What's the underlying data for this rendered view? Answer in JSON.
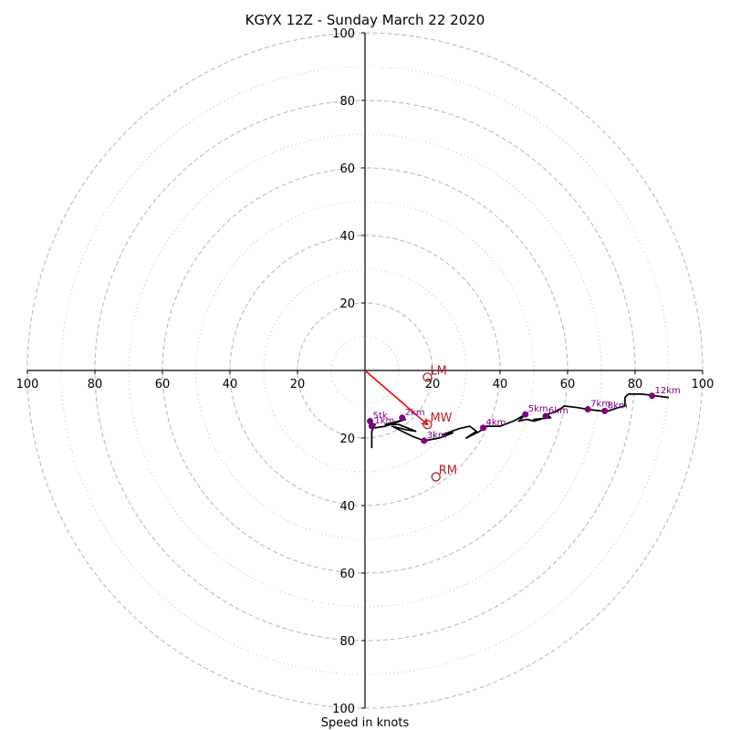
{
  "chart_data": {
    "type": "line",
    "title": "KGYX 12Z - Sunday March 22 2020",
    "xlabel": "Speed in knots",
    "xlim": [
      -100,
      100
    ],
    "ylim": [
      -100,
      100
    ],
    "rings_major": [
      20,
      40,
      60,
      80,
      100
    ],
    "rings_minor": [
      10,
      30,
      50,
      70,
      90
    ],
    "x_ticks": [
      "100",
      "80",
      "60",
      "40",
      "20",
      "20",
      "40",
      "60",
      "80",
      "100"
    ],
    "x_tick_values": [
      -100,
      -80,
      -60,
      -40,
      -20,
      20,
      40,
      60,
      80,
      100
    ],
    "y_ticks": [
      "100",
      "80",
      "60",
      "40",
      "20",
      "20",
      "40",
      "60",
      "80",
      "100"
    ],
    "y_tick_values": [
      100,
      80,
      60,
      40,
      20,
      -20,
      -40,
      -60,
      -80,
      -100
    ],
    "hodograph": {
      "color": "#000000",
      "points": [
        [
          2,
          -23
        ],
        [
          2,
          -18
        ],
        [
          3,
          -16
        ],
        [
          1.5,
          -15.5
        ],
        [
          3,
          -17
        ],
        [
          6,
          -16.5
        ],
        [
          12,
          -14.5
        ],
        [
          6,
          -16
        ],
        [
          10,
          -16
        ],
        [
          15,
          -18
        ],
        [
          12,
          -17.5
        ],
        [
          8,
          -16.5
        ],
        [
          14,
          -19.5
        ],
        [
          17.5,
          -20.8
        ],
        [
          22,
          -20
        ],
        [
          26,
          -18.5
        ],
        [
          23,
          -19
        ],
        [
          28,
          -17.2
        ],
        [
          31,
          -16.5
        ],
        [
          33,
          -18
        ],
        [
          30,
          -20
        ],
        [
          34,
          -18
        ],
        [
          36,
          -16.5
        ],
        [
          40,
          -16.5
        ],
        [
          44,
          -15
        ],
        [
          47.5,
          -13
        ],
        [
          45.5,
          -15
        ],
        [
          48,
          -14.5
        ],
        [
          50,
          -15
        ],
        [
          52,
          -14.5
        ],
        [
          50,
          -14.5
        ],
        [
          55,
          -14
        ],
        [
          54,
          -13
        ],
        [
          57,
          -12
        ],
        [
          59,
          -10.5
        ],
        [
          63,
          -11
        ],
        [
          66,
          -11.5
        ],
        [
          70,
          -12
        ],
        [
          72,
          -12
        ],
        [
          75,
          -11
        ],
        [
          77,
          -10.5
        ],
        [
          77,
          -8
        ],
        [
          78,
          -7
        ],
        [
          82,
          -7
        ],
        [
          86,
          -7.5
        ],
        [
          90,
          -8
        ]
      ]
    },
    "height_markers": {
      "color": "#800080",
      "points": [
        {
          "label": "5tk",
          "x": 1.5,
          "y": -15
        },
        {
          "label": "1km",
          "x": 2,
          "y": -16.5
        },
        {
          "label": "2km",
          "x": 11,
          "y": -14
        },
        {
          "label": "3km",
          "x": 17.5,
          "y": -20.8
        },
        {
          "label": "4km",
          "x": 35,
          "y": -17
        },
        {
          "label": "5km",
          "x": 47.5,
          "y": -13
        },
        {
          "label": "6km",
          "x": 53.5,
          "y": -13.5
        },
        {
          "label": "7km",
          "x": 66,
          "y": -11.5
        },
        {
          "label": "8km",
          "x": 71,
          "y": -12
        },
        {
          "label": "12km",
          "x": 85,
          "y": -7.5
        }
      ]
    },
    "storm_motion": {
      "color": "#b22222",
      "points": [
        {
          "label": "LM",
          "x": 18.5,
          "y": -2
        },
        {
          "label": "MW",
          "x": 18.5,
          "y": -16
        },
        {
          "label": "RM",
          "x": 21,
          "y": -31.5
        }
      ]
    },
    "mean_wind_vector": {
      "color": "#ff0000",
      "from": [
        0,
        0
      ],
      "to": [
        18.5,
        -16
      ]
    }
  }
}
